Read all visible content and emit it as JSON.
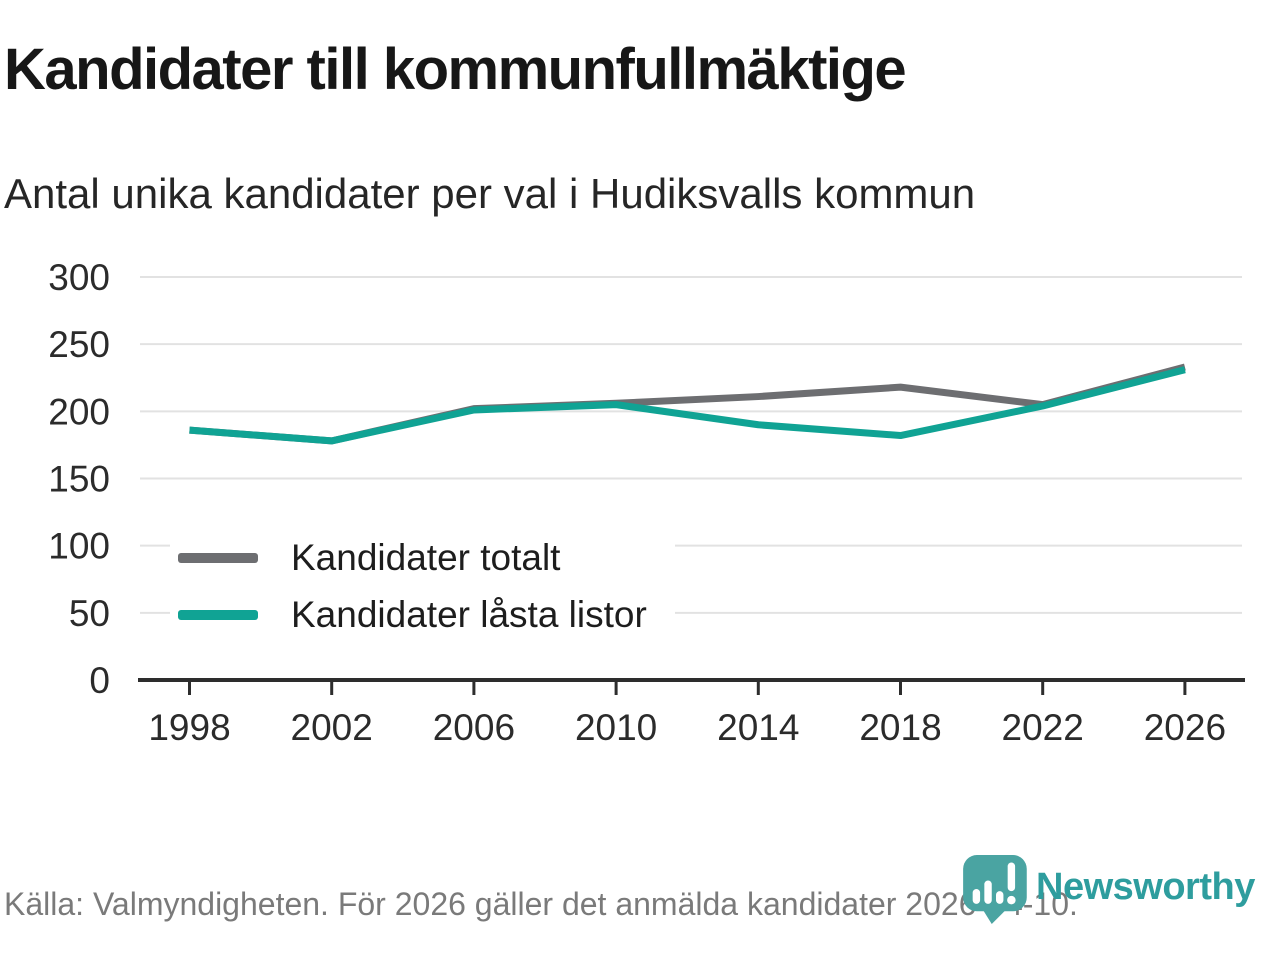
{
  "title": "Kandidater till kommunfullmäktige",
  "subtitle": "Antal unika kandidater per val i Hudiksvalls kommun",
  "footer": {
    "source_text": "Källa: Valmyndigheten. För 2026 gäller det anmälda kandidater 2026-04-10."
  },
  "branding": {
    "logo_text": "Newsworthy",
    "logo_icon": "newsworthy-pin-bar-chart-icon",
    "logo_text_color": "#2e9d9e",
    "logo_icon_color": "#4aa4a2"
  },
  "colors": {
    "gridline": "#e2e2e2",
    "axis": "#2d2d2d",
    "axis_text": "#2b2b2b"
  },
  "chart_data": {
    "type": "line",
    "x": [
      1998,
      2002,
      2006,
      2010,
      2014,
      2018,
      2022,
      2026
    ],
    "series": [
      {
        "name": "Kandidater totalt",
        "color": "#6d6e71",
        "values": [
          186,
          178,
          202,
          206,
          211,
          218,
          205,
          233
        ]
      },
      {
        "name": "Kandidater låsta listor",
        "color": "#10a394",
        "values": [
          186,
          178,
          201,
          205,
          190,
          182,
          204,
          231
        ]
      }
    ],
    "title": "Kandidater till kommunfullmäktige",
    "subtitle": "Antal unika kandidater per val i Hudiksvalls kommun",
    "xlabel": "",
    "ylabel": "",
    "ylim": [
      0,
      300
    ],
    "yticks": [
      0,
      50,
      100,
      150,
      200,
      250,
      300
    ],
    "grid": "horizontal",
    "legend_position": "inside-left-bottom"
  }
}
